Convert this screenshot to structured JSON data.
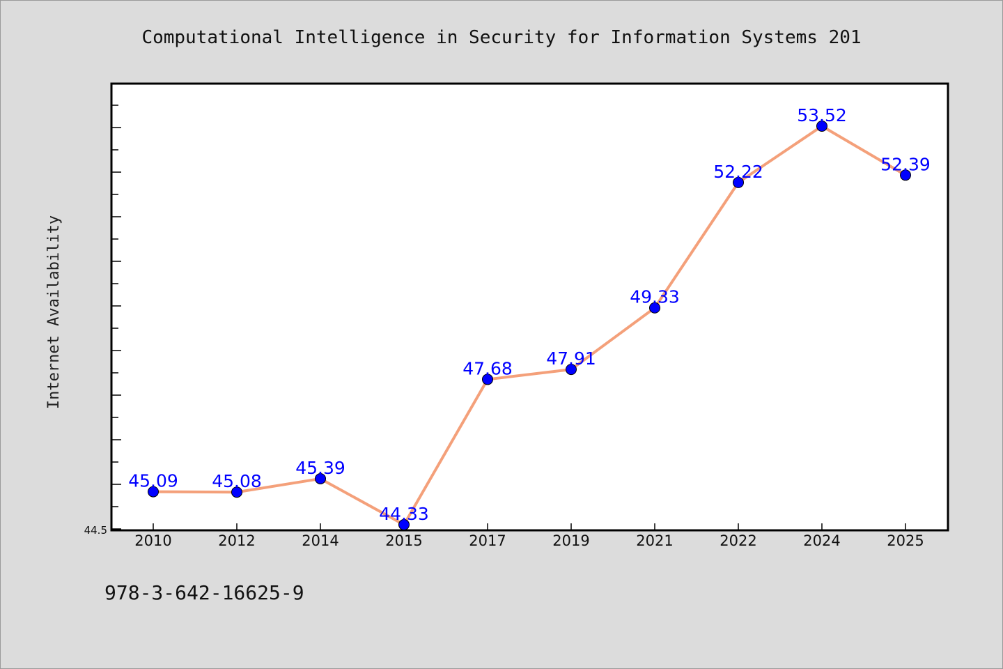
{
  "chart_data": {
    "type": "line",
    "title": "Computational Intelligence in Security for Information Systems 201",
    "xlabel": "",
    "ylabel": "Internet Availability",
    "categories": [
      "2010",
      "2012",
      "2014",
      "2015",
      "2017",
      "2019",
      "2021",
      "2022",
      "2024",
      "2025"
    ],
    "series": [
      {
        "values": [
          45.09,
          45.08,
          45.39,
          44.33,
          47.68,
          47.91,
          49.33,
          52.22,
          53.52,
          52.39
        ],
        "labels": [
          "45.09",
          "45.08",
          "45.39",
          "44.33",
          "47.68",
          "47.91",
          "49.33",
          "52.22",
          "53.52",
          "52.39"
        ],
        "line_color": "#f4a07a",
        "marker_color": "#0000ff",
        "label_color": "#0000ff"
      }
    ],
    "ylim": [
      44.2,
      54.5
    ],
    "y_tick_labels": [
      "44.5"
    ],
    "grid": false,
    "legend": "none"
  },
  "footer": {
    "text": "978-3-642-16625-9"
  }
}
